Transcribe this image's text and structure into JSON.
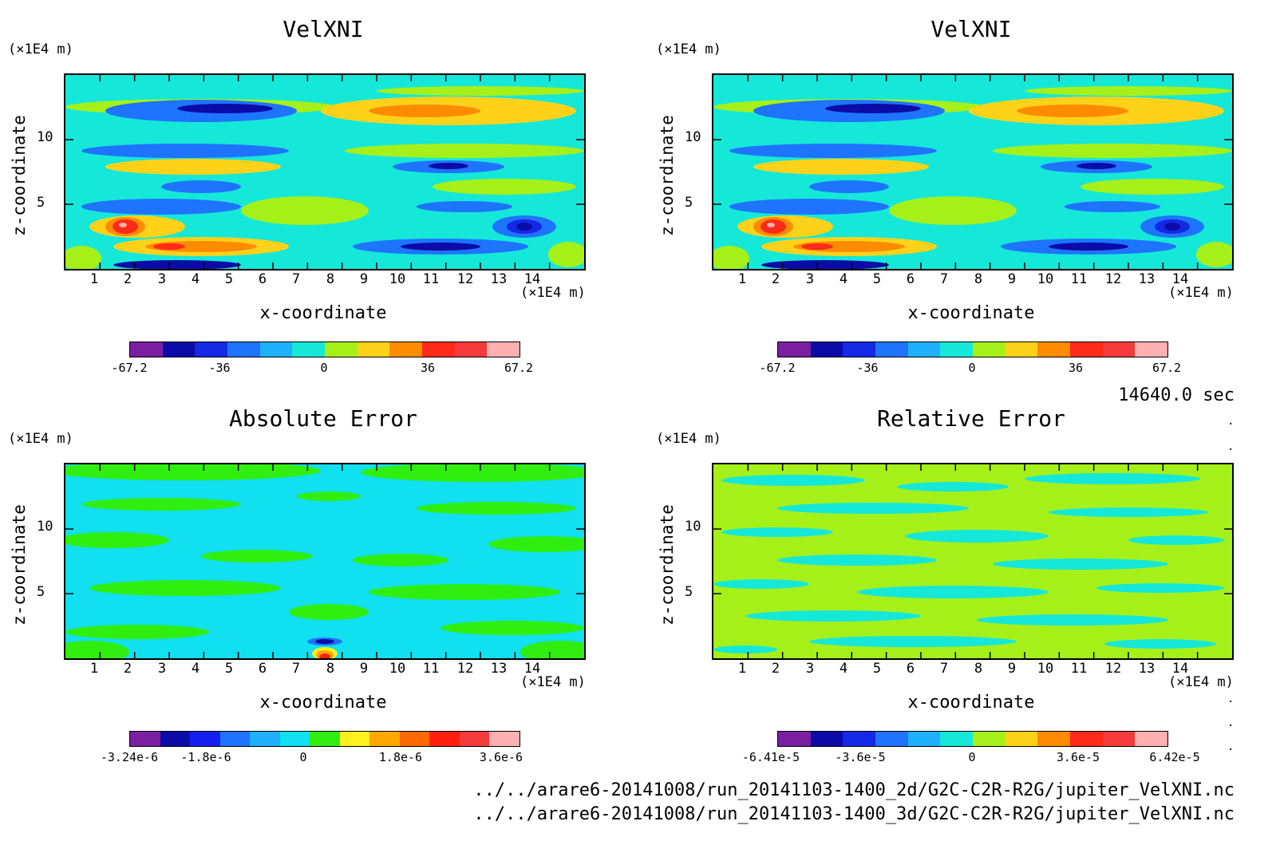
{
  "time_label": "14640.0 sec",
  "footer": {
    "line1": "../../arare6-20141008/run_20141103-1400_2d/G2C-C2R-R2G/jupiter_VelXNI.nc",
    "line2": "../../arare6-20141008/run_20141103-1400_3d/G2C-C2R-R2G/jupiter_VelXNI.nc"
  },
  "chart_data": [
    {
      "type": "heatmap",
      "title": "VelXNI",
      "xlabel": "x-coordinate",
      "ylabel": "z-coordinate",
      "x_unit": "(×1E4 m)",
      "z_unit": "(×1E4 m)",
      "xlim": [
        0,
        15
      ],
      "zlim": [
        0,
        15
      ],
      "x_ticks": [
        "1",
        "2",
        "3",
        "4",
        "5",
        "6",
        "7",
        "8",
        "9",
        "10",
        "11",
        "12",
        "13",
        "14"
      ],
      "z_ticks": [
        "5",
        "10"
      ],
      "colorbar": {
        "colors": [
          "#7a1fa2",
          "#0b0ba8",
          "#1428e6",
          "#1e74ff",
          "#1fb0ff",
          "#15e8d8",
          "#a6f01a",
          "#ffd21a",
          "#ff8c00",
          "#ff2a1a",
          "#f43a3a",
          "#ffb0b0"
        ],
        "tick_labels": [
          "-67.2",
          "-36",
          "0",
          "36",
          "67.2"
        ]
      }
    },
    {
      "type": "heatmap",
      "title": "VelXNI",
      "xlabel": "x-coordinate",
      "ylabel": "z-coordinate",
      "x_unit": "(×1E4 m)",
      "z_unit": "(×1E4 m)",
      "xlim": [
        0,
        15
      ],
      "zlim": [
        0,
        15
      ],
      "x_ticks": [
        "1",
        "2",
        "3",
        "4",
        "5",
        "6",
        "7",
        "8",
        "9",
        "10",
        "11",
        "12",
        "13",
        "14"
      ],
      "z_ticks": [
        "5",
        "10"
      ],
      "colorbar": {
        "colors": [
          "#7a1fa2",
          "#0b0ba8",
          "#1428e6",
          "#1e74ff",
          "#1fb0ff",
          "#15e8d8",
          "#a6f01a",
          "#ffd21a",
          "#ff8c00",
          "#ff2a1a",
          "#f43a3a",
          "#ffb0b0"
        ],
        "tick_labels": [
          "-67.2",
          "-36",
          "0",
          "36",
          "67.2"
        ]
      }
    },
    {
      "type": "heatmap",
      "title": "Absolute Error",
      "xlabel": "x-coordinate",
      "ylabel": "z-coordinate",
      "x_unit": "(×1E4 m)",
      "z_unit": "(×1E4 m)",
      "xlim": [
        0,
        15
      ],
      "zlim": [
        0,
        15
      ],
      "x_ticks": [
        "1",
        "2",
        "3",
        "4",
        "5",
        "6",
        "7",
        "8",
        "9",
        "10",
        "11",
        "12",
        "13",
        "14"
      ],
      "z_ticks": [
        "5",
        "10"
      ],
      "colorbar": {
        "colors": [
          "#7a1fa2",
          "#0b0ba8",
          "#1420f0",
          "#1e74ff",
          "#1fb0ff",
          "#10e0f0",
          "#30ee10",
          "#fff020",
          "#ffa800",
          "#ff6a00",
          "#ff2010",
          "#f43a3a",
          "#ffb0b0"
        ],
        "tick_labels": [
          "-3.24e-6",
          "-1.8e-6",
          "0",
          "1.8e-6",
          "3.6e-6"
        ]
      }
    },
    {
      "type": "heatmap",
      "title": "Relative Error",
      "xlabel": "x-coordinate",
      "ylabel": "z-coordinate",
      "x_unit": "(×1E4 m)",
      "z_unit": "(×1E4 m)",
      "xlim": [
        0,
        15
      ],
      "zlim": [
        0,
        15
      ],
      "x_ticks": [
        "1",
        "2",
        "3",
        "4",
        "5",
        "6",
        "7",
        "8",
        "9",
        "10",
        "11",
        "12",
        "13",
        "14"
      ],
      "z_ticks": [
        "5",
        "10"
      ],
      "colorbar": {
        "colors": [
          "#7a1fa2",
          "#0b0ba8",
          "#1428e6",
          "#1e74ff",
          "#1fb0ff",
          "#15e8d8",
          "#a6f01a",
          "#ffd21a",
          "#ff8c00",
          "#ff2a1a",
          "#f43a3a",
          "#ffb0b0"
        ],
        "tick_labels": [
          "-6.41e-5",
          "-3.6e-5",
          "0",
          "3.6e-5",
          "6.42e-5"
        ]
      }
    }
  ]
}
